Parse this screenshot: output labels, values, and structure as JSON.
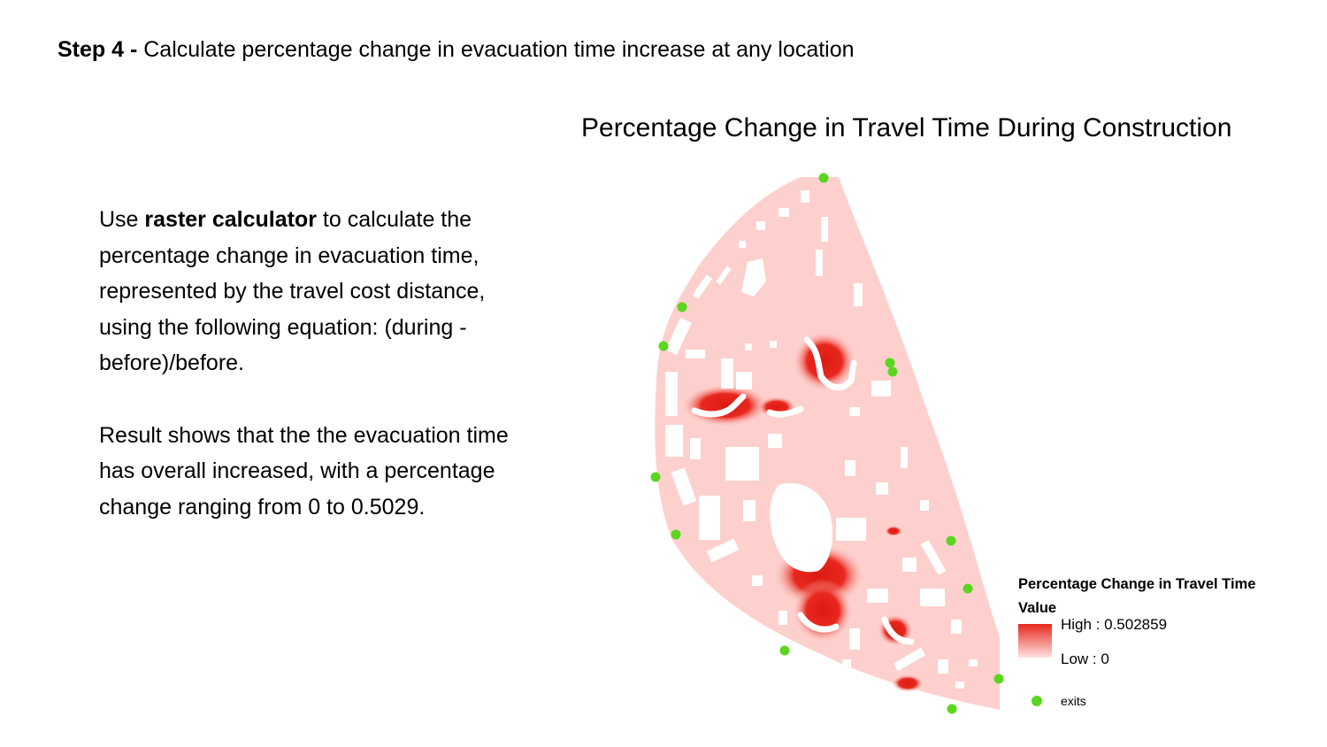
{
  "slide": {
    "step_label": "Step 4 -",
    "step_text": "Calculate percentage change in evacuation time increase at any location",
    "paragraph1": {
      "prefix": "Use ",
      "bold": "raster calculator",
      "suffix": " to calculate the percentage change in evacuation time, represented by the travel cost distance, using the following equation: (during - before)/before."
    },
    "paragraph2": "Result shows that the the evacuation time has overall increased, with a percentage change ranging from 0 to 0.5029."
  },
  "map": {
    "title": "Percentage Change in Travel Time During Construction",
    "legend": {
      "layer_title": "Percentage Change in Travel Time",
      "value_heading": "Value",
      "high_label": "High : 0.502859",
      "low_label": "Low : 0",
      "exits_label": "exits"
    },
    "colors": {
      "base": "#fdd0cd",
      "high": "#e8281e",
      "low": "#ffe2e0",
      "exit": "#5ad61e"
    },
    "value_range": [
      0,
      0.502859
    ]
  }
}
